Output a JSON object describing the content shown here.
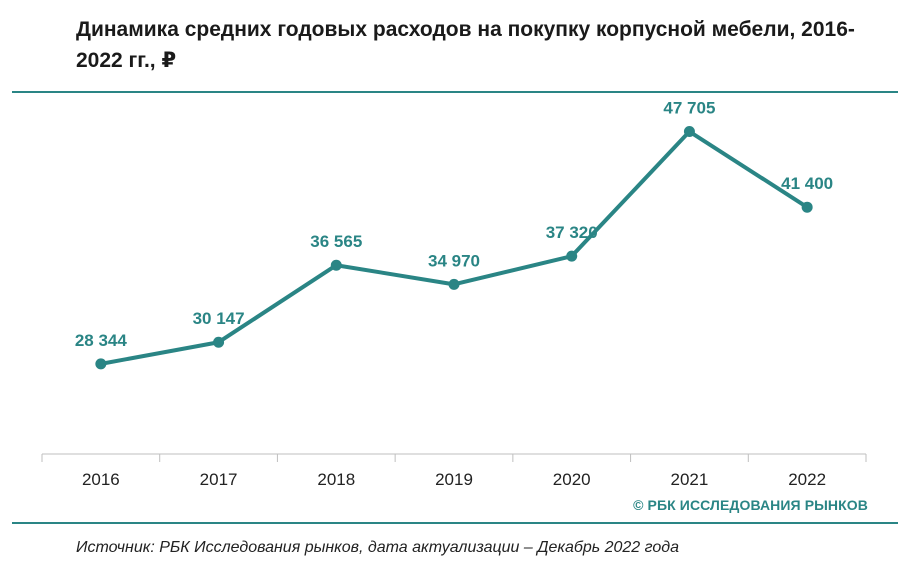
{
  "title": "Динамика средних годовых расходов на покупку корпусной мебели, 2016-2022 гг., ₽",
  "copyright": "© РБК ИССЛЕДОВАНИЯ РЫНКОВ",
  "source": "Источник: РБК Исследования рынков, дата актуализации – Декабрь 2022 года",
  "colors": {
    "accent": "#2a8585",
    "axis": "#bfbfbf",
    "text": "#1a1a1a"
  },
  "chart_data": {
    "type": "line",
    "title": "Динамика средних годовых расходов на покупку корпусной мебели, 2016-2022 гг., ₽",
    "xlabel": "",
    "ylabel": "",
    "categories": [
      "2016",
      "2017",
      "2018",
      "2019",
      "2020",
      "2021",
      "2022"
    ],
    "series": [
      {
        "name": "Средние годовые расходы, ₽",
        "values": [
          28344,
          30147,
          36565,
          34970,
          37320,
          47705,
          41400
        ],
        "labels": [
          "28 344",
          "30 147",
          "36 565",
          "34 970",
          "37 320",
          "47 705",
          "41 400"
        ]
      }
    ],
    "ylim": [
      22000,
      50000
    ],
    "grid": false,
    "legend": "none"
  }
}
